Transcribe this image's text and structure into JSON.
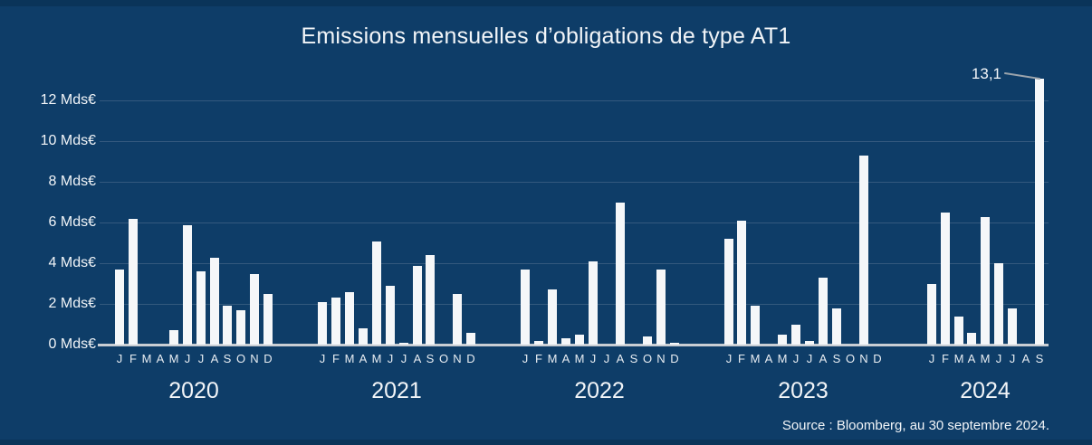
{
  "title": "Emissions mensuelles d’obligations de type AT1",
  "source": {
    "text": "Source : Bloomberg, au 30 septembre 2024."
  },
  "colors": {
    "background": "#0e3d68",
    "edge_band": "#0a3459",
    "bar": "#f5f7f9",
    "text": "#f2f5f8",
    "gridline": "#33597e",
    "baseline": "#c9ced4",
    "annotation_line": "#9ba4ac"
  },
  "y_axis": {
    "ticks": [
      {
        "value": 0,
        "label": "0 Mds€"
      },
      {
        "value": 2,
        "label": "2 Mds€"
      },
      {
        "value": 4,
        "label": "4 Mds€"
      },
      {
        "value": 6,
        "label": "6 Mds€"
      },
      {
        "value": 8,
        "label": "8 Mds€"
      },
      {
        "value": 10,
        "label": "10 Mds€"
      },
      {
        "value": 12,
        "label": "12 Mds€"
      }
    ]
  },
  "chart_data": {
    "type": "bar",
    "title": "Emissions mensuelles d’obligations de type AT1",
    "unit": "Mds€",
    "ylabel": "Mds€",
    "ylim": [
      0,
      13.1
    ],
    "gridline_values": [
      0,
      2,
      4,
      6,
      8,
      10,
      12
    ],
    "grid": true,
    "legend_position": "none",
    "month_letters": [
      "J",
      "F",
      "M",
      "A",
      "M",
      "J",
      "J",
      "A",
      "S",
      "O",
      "N",
      "D"
    ],
    "groups": [
      {
        "year": "2020",
        "values": [
          3.7,
          6.2,
          0,
          0,
          0.7,
          5.9,
          3.6,
          4.3,
          1.9,
          1.7,
          3.5,
          2.5
        ]
      },
      {
        "year": "2021",
        "values": [
          2.1,
          2.3,
          2.6,
          0.8,
          5.1,
          2.9,
          0.1,
          3.9,
          4.4,
          0,
          2.5,
          0.6
        ]
      },
      {
        "year": "2022",
        "values": [
          3.7,
          0.2,
          2.7,
          0.3,
          0.5,
          4.1,
          0,
          7.0,
          0,
          0.4,
          3.7,
          0.1
        ]
      },
      {
        "year": "2023",
        "values": [
          5.2,
          6.1,
          1.9,
          0,
          0.5,
          1.0,
          0.2,
          3.3,
          1.8,
          0,
          9.3,
          0
        ]
      },
      {
        "year": "2024",
        "values": [
          3.0,
          6.5,
          1.4,
          0.6,
          6.3,
          4.0,
          1.8,
          0,
          13.1
        ]
      }
    ],
    "annotation": {
      "text": "13,1",
      "value": 13.1,
      "target_year": "2024",
      "target_month": "S"
    }
  }
}
